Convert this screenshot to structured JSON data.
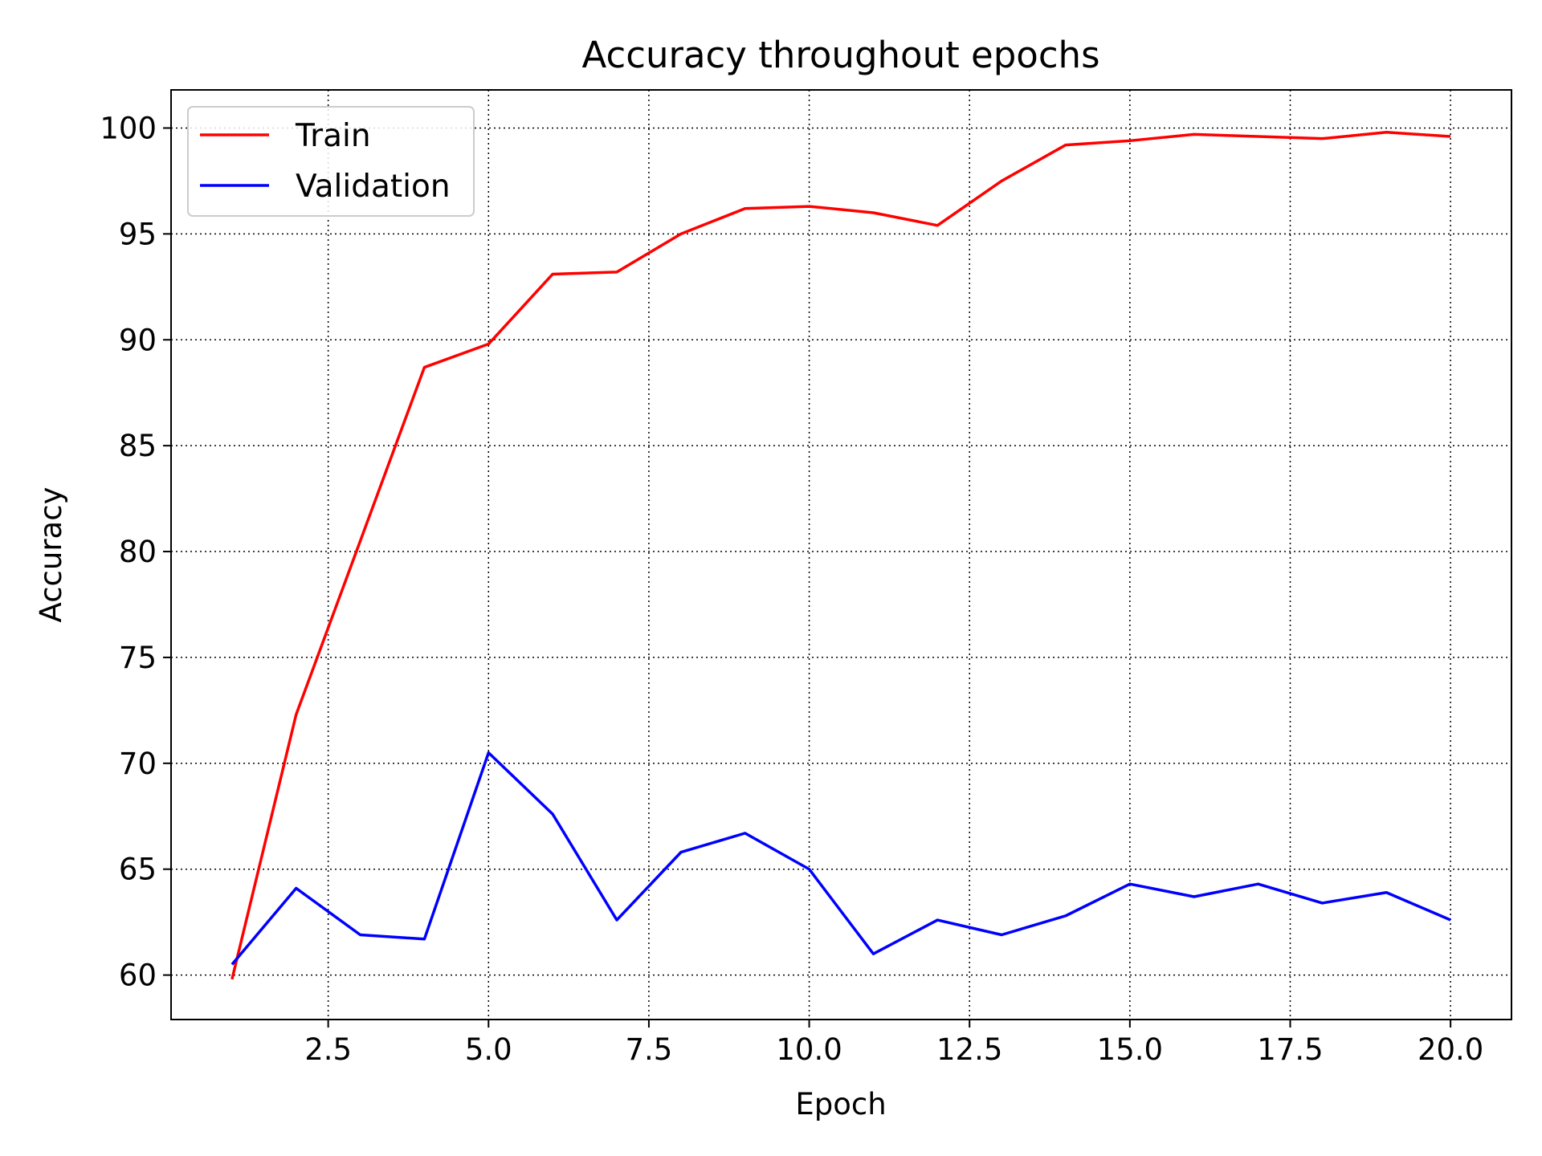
{
  "chart_data": {
    "type": "line",
    "title": "Accuracy throughout epochs",
    "xlabel": "Epoch",
    "ylabel": "Accuracy",
    "xlim": [
      0.05,
      20.95
    ],
    "ylim": [
      57.9,
      101.8
    ],
    "xticks": [
      2.5,
      5.0,
      7.5,
      10.0,
      12.5,
      15.0,
      17.5,
      20.0
    ],
    "xtick_labels": [
      "2.5",
      "5.0",
      "7.5",
      "10.0",
      "12.5",
      "15.0",
      "17.5",
      "20.0"
    ],
    "yticks": [
      60,
      65,
      70,
      75,
      80,
      85,
      90,
      95,
      100
    ],
    "ytick_labels": [
      "60",
      "65",
      "70",
      "75",
      "80",
      "85",
      "90",
      "95",
      "100"
    ],
    "grid": true,
    "grid_style": "dotted",
    "legend_position": "upper-left",
    "x": [
      1,
      2,
      3,
      4,
      5,
      6,
      7,
      8,
      9,
      10,
      11,
      12,
      13,
      14,
      15,
      16,
      17,
      18,
      19,
      20
    ],
    "series": [
      {
        "name": "Train",
        "color": "#ff0000",
        "values": [
          59.8,
          72.3,
          80.5,
          88.7,
          89.8,
          93.1,
          93.2,
          95.0,
          96.2,
          96.3,
          96.0,
          95.4,
          97.5,
          99.2,
          99.4,
          99.7,
          99.6,
          99.5,
          99.8,
          99.6
        ]
      },
      {
        "name": "Validation",
        "color": "#0000ff",
        "values": [
          60.5,
          64.1,
          61.9,
          61.7,
          70.5,
          67.6,
          62.6,
          65.8,
          66.7,
          65.0,
          61.0,
          62.6,
          61.9,
          62.8,
          64.3,
          63.7,
          64.3,
          63.4,
          63.9,
          62.6
        ]
      }
    ]
  }
}
